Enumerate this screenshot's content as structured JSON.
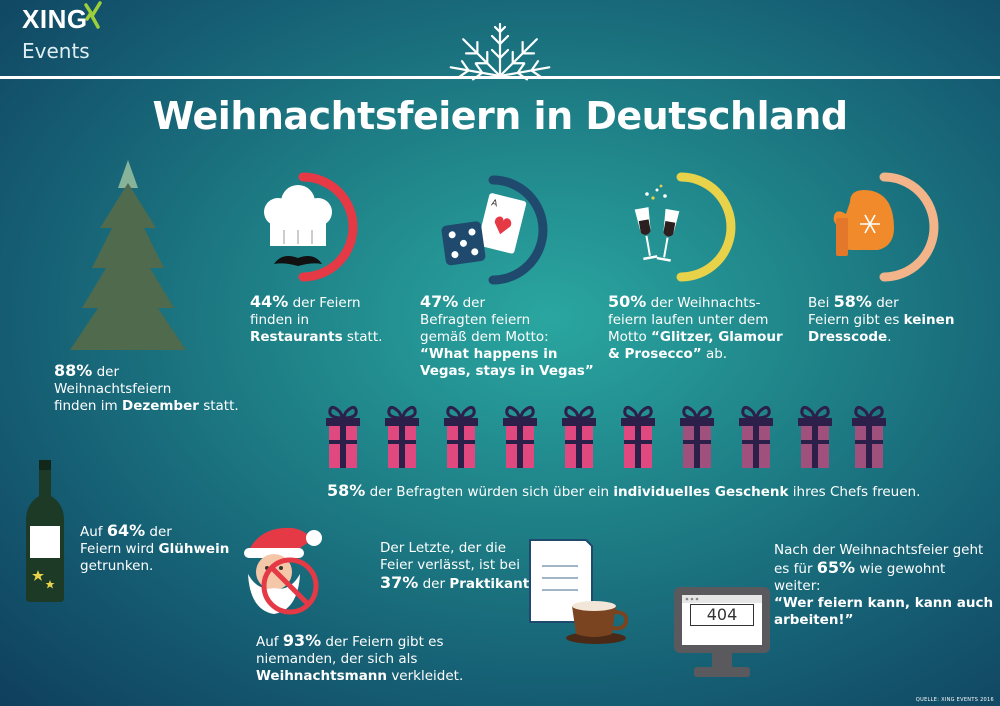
{
  "brand": {
    "logo_text": "XING",
    "logo_sub": "Events"
  },
  "title": "Weihnachtsfeiern in Deutschland",
  "colors": {
    "red_arc": "#e63946",
    "navy_arc": "#1f4a6e",
    "yellow_arc": "#e8d24a",
    "peach_arc": "#f3b48a",
    "tree": "#4f6a4c",
    "tree_tip": "#86b39a",
    "gift_pink": "#e0497f",
    "gift_pink_light": "#a0507d",
    "gift_ribbon": "#2c1f4a",
    "mitten": "#f08a2b",
    "bottle": "#1c3a26"
  },
  "stats": {
    "restaurant": {
      "percent": "44%",
      "value": 44,
      "line1": " der Feiern",
      "line2": "finden in",
      "bold": "Restaurants",
      "after": " statt."
    },
    "vegas": {
      "percent": "47%",
      "value": 47,
      "line1": " der",
      "line2": "Befragten feiern",
      "line3": "gemäß dem Motto:",
      "quote1": "“What happens in",
      "quote2": "Vegas, stays in Vegas”"
    },
    "glitzer": {
      "percent": "50%",
      "value": 50,
      "line1": " der Weihnachts-",
      "line2": "feiern laufen unter dem",
      "line3_pre": "Motto ",
      "quote1": "“Glitzer, Glamour",
      "quote2": "& Prosecco”",
      "after": " ab."
    },
    "dresscode": {
      "percent": "58%",
      "value": 58,
      "pre": "Bei ",
      "line1": " der",
      "line2_pre": "Feiern gibt es ",
      "bold1": "keinen",
      "bold2": "Dresscode",
      "after": "."
    },
    "dezember": {
      "percent": "88%",
      "value": 88,
      "line1": " der",
      "line2": "Weihnachtsfeiern",
      "line3_pre": "finden im ",
      "bold": "Dezember",
      "after": " statt."
    },
    "geschenk": {
      "percent": "58%",
      "value": 58,
      "pre": " der Befragten würden sich über ein ",
      "bold": "individuelles Geschenk",
      "after": " ihres Chefs freuen."
    },
    "gluehwein": {
      "percent": "64%",
      "value": 64,
      "pre": "Auf ",
      "line1": " der",
      "line2_pre": "Feiern wird ",
      "bold": "Glühwein",
      "line3": "getrunken."
    },
    "weihnachtsmann": {
      "percent": "93%",
      "value": 93,
      "pre": "Auf ",
      "line1": " der Feiern gibt es",
      "line2": "niemanden, der sich als",
      "bold": "Weihnachtsmann",
      "after": " verkleidet."
    },
    "praktikant": {
      "percent": "37%",
      "value": 37,
      "line1": "Der Letzte, der die",
      "line2": "Feier verlässt, ist bei",
      "mid": " der ",
      "bold": "Praktikant",
      "after": "."
    },
    "arbeiten": {
      "percent": "65%",
      "value": 65,
      "line1": "Nach der Weihnachtsfeier geht",
      "line2_pre": "es für ",
      "line2_after": " wie gewohnt",
      "line3": "weiter:",
      "quote1": "“Wer feiern kann, kann auch",
      "quote2": "arbeiten!”"
    }
  },
  "screen_text": "404",
  "source": "QUELLE: XING EVENTS 2016"
}
